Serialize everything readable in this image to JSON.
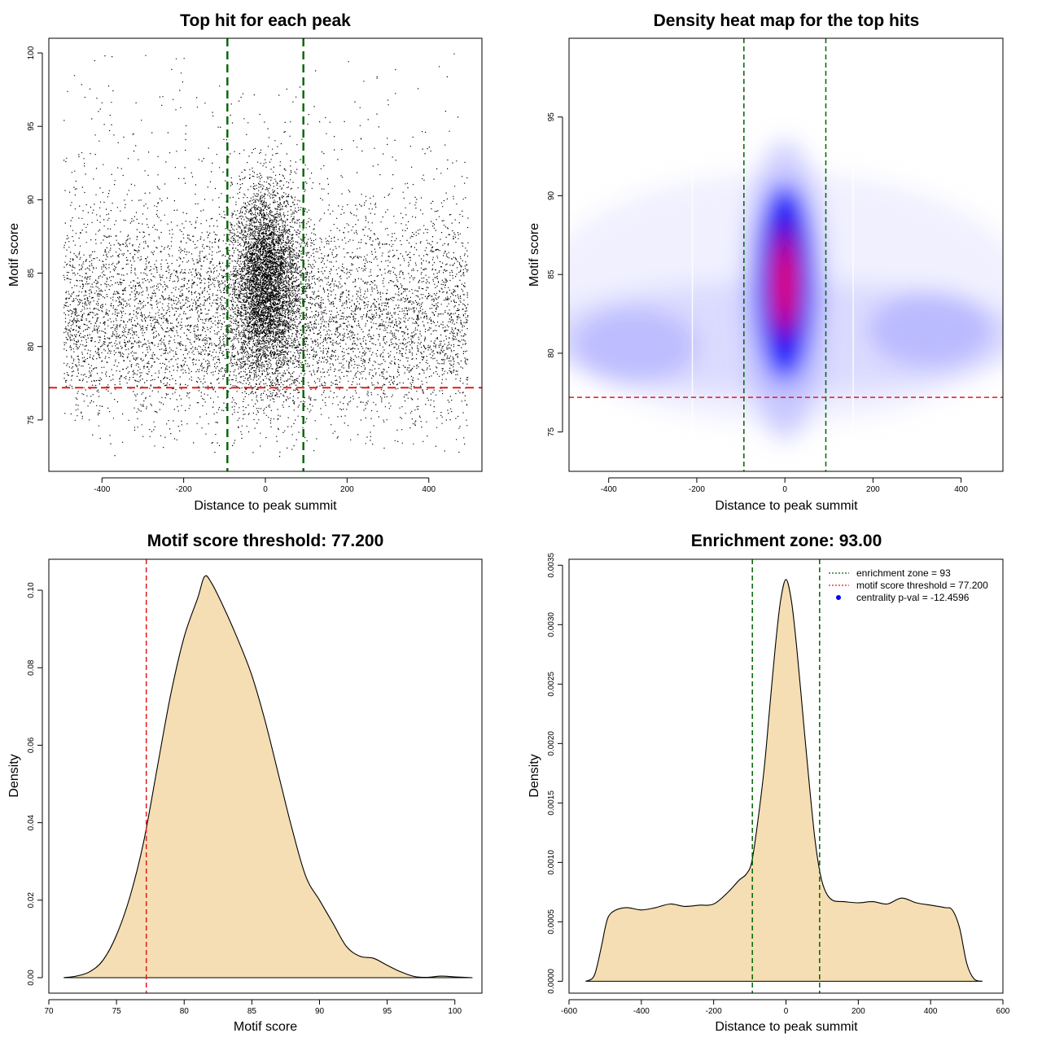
{
  "chart_data": [
    {
      "type": "scatter",
      "title": "Top hit for each peak",
      "xlabel": "Distance to peak summit",
      "ylabel": "Motif score",
      "xlim": [
        -530,
        530
      ],
      "ylim": [
        71.5,
        101.0
      ],
      "xticks": [
        -400,
        -200,
        0,
        200,
        400
      ],
      "xtick_labels": [
        "-400",
        "-200",
        "0",
        "200",
        "400"
      ],
      "yticks": [
        75,
        80,
        85,
        90,
        95,
        100
      ],
      "ytick_labels": [
        "75",
        "80",
        "85",
        "90",
        "95",
        "100"
      ],
      "vlines": [
        -93,
        93
      ],
      "vline_color": "#006400",
      "hline": 77.2,
      "hline_color": "#e31a1c",
      "points_note": "approximately 12000 points; dense cluster near distance 0 and motif score 84, sparse uniform background between -500 and 500",
      "grid": false
    },
    {
      "type": "heatmap",
      "title": "Density heat map for the top hits",
      "xlabel": "Distance to peak summit",
      "ylabel": "Motif score",
      "xlim": [
        -490,
        495
      ],
      "ylim": [
        72.5,
        100.0
      ],
      "xticks": [
        -400,
        -200,
        0,
        200,
        400
      ],
      "xtick_labels": [
        "-400",
        "-200",
        "0",
        "200",
        "400"
      ],
      "yticks": [
        75,
        80,
        85,
        90,
        95
      ],
      "ytick_labels": [
        "75",
        "80",
        "85",
        "90",
        "95"
      ],
      "vlines": [
        -93,
        93
      ],
      "vline_color": "#006400",
      "hline": 77.2,
      "hline_color": "#e31a1c",
      "density_peak": {
        "x": 0,
        "y": 84.5
      },
      "colors": [
        "#ffffff",
        "#0000ff",
        "#ff0000"
      ],
      "grid": false
    },
    {
      "type": "area",
      "title": "Motif score threshold: 77.200",
      "xlabel": "Motif score",
      "ylabel": "Density",
      "xlim": [
        70,
        102
      ],
      "ylim": [
        -0.004,
        0.108
      ],
      "xticks": [
        70,
        75,
        80,
        85,
        90,
        95,
        100
      ],
      "xtick_labels": [
        "70",
        "75",
        "80",
        "85",
        "90",
        "95",
        "100"
      ],
      "yticks": [
        0.0,
        0.02,
        0.04,
        0.06,
        0.08,
        0.1
      ],
      "ytick_labels": [
        "0.00",
        "0.02",
        "0.04",
        "0.06",
        "0.08",
        "0.10"
      ],
      "x": [
        71.1,
        72,
        73,
        74,
        75,
        76,
        77,
        78,
        79,
        80,
        81,
        81.5,
        82,
        83,
        84,
        85,
        86,
        87,
        88,
        89,
        90,
        91,
        92,
        93,
        94,
        95,
        96,
        97,
        98,
        99,
        100,
        101.3
      ],
      "y": [
        0.0,
        0.0004,
        0.0015,
        0.0045,
        0.011,
        0.021,
        0.035,
        0.054,
        0.073,
        0.088,
        0.098,
        0.1035,
        0.102,
        0.095,
        0.087,
        0.078,
        0.066,
        0.052,
        0.038,
        0.026,
        0.02,
        0.014,
        0.008,
        0.0055,
        0.005,
        0.0032,
        0.0015,
        0.0003,
        0.0001,
        0.0004,
        0.0002,
        0.0
      ],
      "vlines": [
        77.2
      ],
      "vline_color": "#e31a1c",
      "fill": "#f5deb3",
      "grid": false
    },
    {
      "type": "area",
      "title": "Enrichment zone: 93.00",
      "xlabel": "Distance to peak summit",
      "ylabel": "Density",
      "xlim": [
        -600,
        600
      ],
      "ylim": [
        -0.0001,
        0.00355
      ],
      "xticks": [
        -600,
        -400,
        -200,
        0,
        200,
        400,
        600
      ],
      "xtick_labels": [
        "-600",
        "-400",
        "-200",
        "0",
        "200",
        "400",
        "600"
      ],
      "yticks": [
        0.0,
        0.0005,
        0.001,
        0.0015,
        0.002,
        0.0025,
        0.003,
        0.0035
      ],
      "ytick_labels": [
        "0.0000",
        "0.0005",
        "0.0010",
        "0.0015",
        "0.0020",
        "0.0025",
        "0.0030",
        "0.0035"
      ],
      "x": [
        -554,
        -530,
        -510,
        -500,
        -490,
        -470,
        -440,
        -400,
        -360,
        -320,
        -280,
        -240,
        -200,
        -160,
        -130,
        -110,
        -95,
        -80,
        -60,
        -45,
        -30,
        -15,
        0,
        15,
        30,
        45,
        60,
        80,
        95,
        110,
        130,
        160,
        200,
        240,
        280,
        320,
        360,
        400,
        440,
        460,
        480,
        500,
        520,
        543
      ],
      "y": [
        0.0,
        5e-05,
        0.0003,
        0.00045,
        0.00055,
        0.0006,
        0.00062,
        0.0006,
        0.00062,
        0.00065,
        0.00063,
        0.00064,
        0.00065,
        0.00075,
        0.00085,
        0.0009,
        0.001,
        0.0013,
        0.0018,
        0.0023,
        0.0028,
        0.0032,
        0.00338,
        0.0032,
        0.0028,
        0.0023,
        0.0018,
        0.0012,
        0.0009,
        0.00075,
        0.00068,
        0.00067,
        0.00066,
        0.00067,
        0.00065,
        0.0007,
        0.00066,
        0.00064,
        0.00062,
        0.0006,
        0.00045,
        0.00015,
        2e-05,
        0.0
      ],
      "vlines": [
        -93,
        93
      ],
      "vline_color": "#006400",
      "fill": "#f5deb3",
      "legend": {
        "position": "top-right",
        "entries": [
          {
            "label": "enrichment zone = 93",
            "color": "#006400",
            "style": "dotted-line"
          },
          {
            "label": "motif score threshold = 77.200",
            "color": "#e31a1c",
            "style": "dotted-line"
          },
          {
            "label": "centrality p-val = -12.4596",
            "color": "#0000ff",
            "style": "point"
          }
        ]
      },
      "grid": false
    }
  ]
}
